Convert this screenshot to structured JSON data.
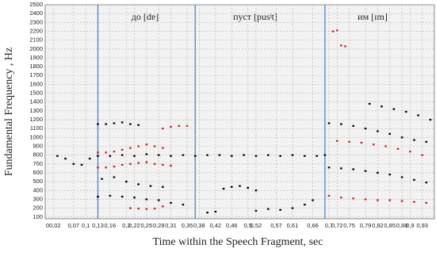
{
  "chart_data": {
    "type": "scatter",
    "x_label": "Time within the Speech Fragment, sec",
    "y_label": "Fundamental Frequency , Hz",
    "annotations": [
      "до [dɐ]",
      "пуст [pusʲt]",
      "им [ɪm]"
    ],
    "boundaries": [
      0.13,
      0.37,
      0.69
    ],
    "boundary_color": "#4a86c8",
    "grid": true,
    "xlim": [
      0,
      0.96
    ],
    "ylim": [
      80,
      2500
    ],
    "yticks": [
      100,
      200,
      300,
      400,
      500,
      600,
      700,
      800,
      900,
      1000,
      1100,
      1200,
      1300,
      1400,
      1500,
      1600,
      1700,
      1800,
      1900,
      2000,
      2100,
      2200,
      2300,
      2400,
      2500
    ],
    "xticks": [
      {
        "value": 0.02,
        "label": "00,02"
      },
      {
        "value": 0.07,
        "label": "0,07"
      },
      {
        "value": 0.1,
        "label": "0,1"
      },
      {
        "value": 0.13,
        "label": "0,13"
      },
      {
        "value": 0.16,
        "label": "0,16"
      },
      {
        "value": 0.2,
        "label": "0,2"
      },
      {
        "value": 0.22,
        "label": "0,22"
      },
      {
        "value": 0.25,
        "label": "0,25"
      },
      {
        "value": 0.28,
        "label": "0,28"
      },
      {
        "value": 0.31,
        "label": "0,31"
      },
      {
        "value": 0.35,
        "label": "0,35"
      },
      {
        "value": 0.38,
        "label": "0,38"
      },
      {
        "value": 0.42,
        "label": "0,42"
      },
      {
        "value": 0.46,
        "label": "0,46"
      },
      {
        "value": 0.5,
        "label": "0,5"
      },
      {
        "value": 0.52,
        "label": "0,52"
      },
      {
        "value": 0.57,
        "label": "0,57"
      },
      {
        "value": 0.61,
        "label": "0,61"
      },
      {
        "value": 0.66,
        "label": "0,66"
      },
      {
        "value": 0.7,
        "label": "0,7"
      },
      {
        "value": 0.72,
        "label": "0,72"
      },
      {
        "value": 0.75,
        "label": "0,75"
      },
      {
        "value": 0.79,
        "label": "0,79"
      },
      {
        "value": 0.82,
        "label": "0,82"
      },
      {
        "value": 0.85,
        "label": "0,85"
      },
      {
        "value": 0.88,
        "label": "0,88"
      },
      {
        "value": 0.9,
        "label": "0,9"
      },
      {
        "value": 0.93,
        "label": "0,93"
      }
    ],
    "series": [
      {
        "color": "#000000",
        "x": [
          0.03,
          0.05,
          0.07,
          0.09,
          0.11,
          0.13,
          0.16,
          0.19,
          0.22,
          0.25,
          0.28,
          0.31,
          0.34,
          0.37,
          0.4,
          0.43,
          0.46,
          0.49,
          0.52,
          0.55,
          0.58,
          0.61,
          0.64,
          0.67,
          0.69
        ],
        "values": [
          790,
          760,
          700,
          690,
          760,
          790,
          790,
          800,
          790,
          810,
          800,
          790,
          800,
          790,
          800,
          800,
          790,
          800,
          790,
          800,
          790,
          800,
          790,
          790,
          800
        ]
      },
      {
        "color": "#000000",
        "x": [
          0.7,
          0.73,
          0.76,
          0.79,
          0.82,
          0.85,
          0.88,
          0.91,
          0.94
        ],
        "values": [
          1160,
          1150,
          1130,
          1100,
          1070,
          1040,
          1000,
          970,
          950
        ]
      },
      {
        "color": "#000000",
        "x": [
          0.8,
          0.83,
          0.86,
          0.89,
          0.92,
          0.95
        ],
        "values": [
          1380,
          1350,
          1320,
          1290,
          1250,
          1200
        ]
      },
      {
        "color": "#000000",
        "x": [
          0.7,
          0.73,
          0.76,
          0.79,
          0.82,
          0.85,
          0.88,
          0.91,
          0.94
        ],
        "values": [
          660,
          650,
          640,
          620,
          600,
          580,
          550,
          520,
          490
        ]
      },
      {
        "color": "#000000",
        "x": [
          0.13,
          0.15,
          0.17,
          0.19,
          0.21,
          0.23
        ],
        "values": [
          1150,
          1150,
          1160,
          1170,
          1150,
          1140
        ]
      },
      {
        "color": "#000000",
        "x": [
          0.14,
          0.17,
          0.2,
          0.23,
          0.26,
          0.29
        ],
        "values": [
          530,
          550,
          500,
          470,
          450,
          440
        ]
      },
      {
        "color": "#000000",
        "x": [
          0.13,
          0.16,
          0.19,
          0.22,
          0.25,
          0.28,
          0.31,
          0.34
        ],
        "values": [
          330,
          340,
          330,
          320,
          300,
          290,
          260,
          240
        ]
      },
      {
        "color": "#000000",
        "x": [
          0.44,
          0.46,
          0.48,
          0.5,
          0.52
        ],
        "values": [
          420,
          440,
          450,
          430,
          400
        ]
      },
      {
        "color": "#000000",
        "x": [
          0.4,
          0.42,
          0.52,
          0.55,
          0.58,
          0.61,
          0.64,
          0.66
        ],
        "values": [
          150,
          160,
          170,
          190,
          180,
          200,
          240,
          290
        ]
      },
      {
        "color": "#cc2020",
        "x": [
          0.13,
          0.15,
          0.17,
          0.19,
          0.21,
          0.23,
          0.25,
          0.27,
          0.29
        ],
        "values": [
          830,
          830,
          840,
          860,
          880,
          900,
          920,
          900,
          880
        ]
      },
      {
        "color": "#cc2020",
        "x": [
          0.13,
          0.15,
          0.17,
          0.19,
          0.21,
          0.23,
          0.25,
          0.27,
          0.29,
          0.31
        ],
        "values": [
          660,
          660,
          670,
          690,
          700,
          710,
          720,
          700,
          690,
          680
        ]
      },
      {
        "color": "#cc2020",
        "x": [
          0.29,
          0.31,
          0.33,
          0.35
        ],
        "values": [
          1100,
          1120,
          1130,
          1130
        ]
      },
      {
        "color": "#cc2020",
        "x": [
          0.21,
          0.23,
          0.25,
          0.27,
          0.29
        ],
        "values": [
          200,
          195,
          190,
          195,
          220
        ]
      },
      {
        "color": "#cc2020",
        "x": [
          0.71,
          0.72,
          0.73,
          0.74
        ],
        "values": [
          2200,
          2210,
          2040,
          2030
        ]
      },
      {
        "color": "#cc2020",
        "x": [
          0.72,
          0.75,
          0.78,
          0.81,
          0.84,
          0.87,
          0.9,
          0.93
        ],
        "values": [
          960,
          950,
          940,
          920,
          900,
          870,
          840,
          800
        ]
      },
      {
        "color": "#cc2020",
        "x": [
          0.7,
          0.73,
          0.76,
          0.79,
          0.82,
          0.85,
          0.88,
          0.91,
          0.94
        ],
        "values": [
          340,
          320,
          310,
          300,
          290,
          290,
          280,
          270,
          260
        ]
      }
    ]
  }
}
